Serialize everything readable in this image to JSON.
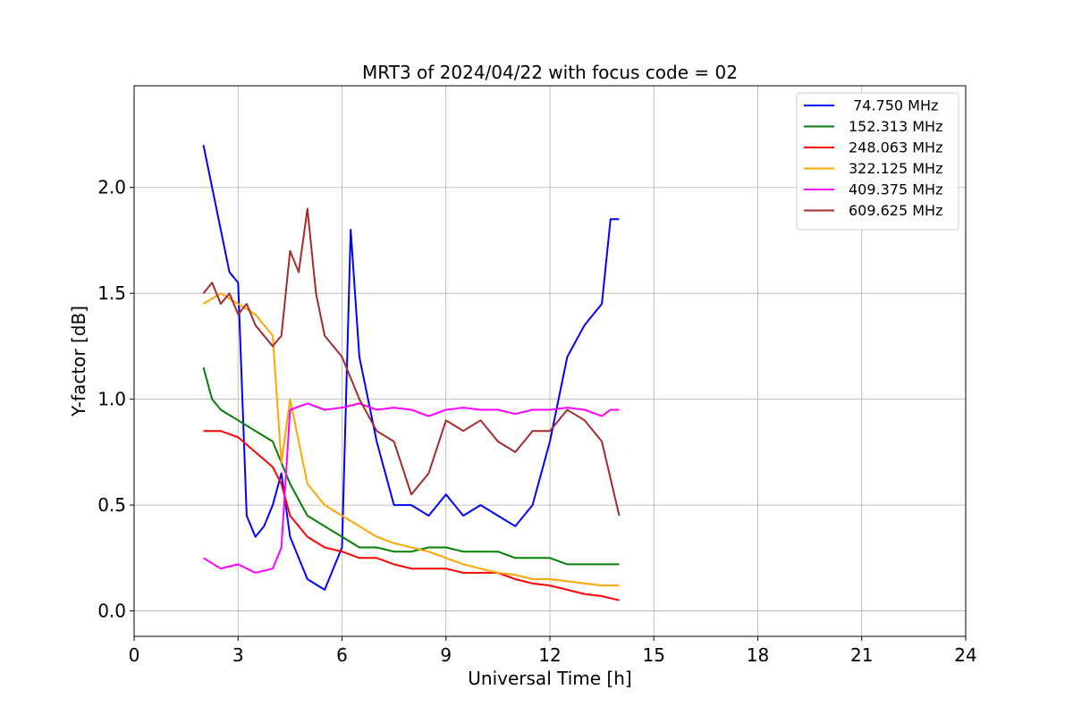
{
  "chart_data": {
    "type": "line",
    "title": "MRT3 of 2024/04/22 with focus code = 02",
    "xlabel": "Universal Time [h]",
    "ylabel": "Y-factor [dB]",
    "xlim": [
      0,
      24
    ],
    "ylim": [
      -0.12,
      2.48
    ],
    "xticks": [
      0,
      3,
      6,
      9,
      12,
      15,
      18,
      21,
      24
    ],
    "xtick_labels": [
      "0",
      "3",
      "6",
      "9",
      "12",
      "15",
      "18",
      "21",
      "24"
    ],
    "yticks": [
      0.0,
      0.5,
      1.0,
      1.5,
      2.0
    ],
    "ytick_labels": [
      "0.0",
      "0.5",
      "1.0",
      "1.5",
      "2.0"
    ],
    "grid": true,
    "legend_position": "top-right",
    "series": [
      {
        "name": " 74.750 MHz",
        "color": "#0000ff",
        "x": [
          2.0,
          2.25,
          2.5,
          2.75,
          3.0,
          3.25,
          3.5,
          3.75,
          4.0,
          4.25,
          4.5,
          5.0,
          5.5,
          6.0,
          6.25,
          6.5,
          7.0,
          7.5,
          8.0,
          8.5,
          9.0,
          9.5,
          10.0,
          10.5,
          11.0,
          11.5,
          12.0,
          12.5,
          13.0,
          13.25,
          13.5,
          13.75,
          14.0
        ],
        "y": [
          2.2,
          2.0,
          1.8,
          1.6,
          1.55,
          0.45,
          0.35,
          0.4,
          0.5,
          0.65,
          0.35,
          0.15,
          0.1,
          0.3,
          1.8,
          1.2,
          0.8,
          0.5,
          0.5,
          0.45,
          0.55,
          0.45,
          0.5,
          0.45,
          0.4,
          0.5,
          0.8,
          1.2,
          1.35,
          1.4,
          1.45,
          1.85,
          1.85
        ]
      },
      {
        "name": "152.313 MHz",
        "color": "#008000",
        "x": [
          2.0,
          2.25,
          2.5,
          3.0,
          3.5,
          4.0,
          4.5,
          5.0,
          5.5,
          6.0,
          6.5,
          7.0,
          7.5,
          8.0,
          8.5,
          9.0,
          9.5,
          10.0,
          10.5,
          11.0,
          11.5,
          12.0,
          12.5,
          13.0,
          13.5,
          14.0
        ],
        "y": [
          1.15,
          1.0,
          0.95,
          0.9,
          0.85,
          0.8,
          0.6,
          0.45,
          0.4,
          0.35,
          0.3,
          0.3,
          0.28,
          0.28,
          0.3,
          0.3,
          0.28,
          0.28,
          0.28,
          0.25,
          0.25,
          0.25,
          0.22,
          0.22,
          0.22,
          0.22
        ]
      },
      {
        "name": "248.063 MHz",
        "color": "#ff0000",
        "x": [
          2.0,
          2.5,
          3.0,
          3.5,
          4.0,
          4.25,
          4.5,
          5.0,
          5.5,
          6.0,
          6.5,
          7.0,
          7.5,
          8.0,
          8.5,
          9.0,
          9.5,
          10.0,
          10.5,
          11.0,
          11.5,
          12.0,
          12.5,
          13.0,
          13.5,
          14.0
        ],
        "y": [
          0.85,
          0.85,
          0.82,
          0.75,
          0.68,
          0.6,
          0.45,
          0.35,
          0.3,
          0.28,
          0.25,
          0.25,
          0.22,
          0.2,
          0.2,
          0.2,
          0.18,
          0.18,
          0.18,
          0.15,
          0.13,
          0.12,
          0.1,
          0.08,
          0.07,
          0.05
        ]
      },
      {
        "name": "322.125 MHz",
        "color": "#ffa500",
        "x": [
          2.0,
          2.5,
          3.0,
          3.5,
          4.0,
          4.25,
          4.5,
          5.0,
          5.5,
          6.0,
          6.5,
          7.0,
          7.5,
          8.0,
          8.5,
          9.0,
          9.5,
          10.0,
          10.5,
          11.0,
          11.5,
          12.0,
          12.5,
          13.0,
          13.5,
          14.0
        ],
        "y": [
          1.45,
          1.5,
          1.45,
          1.4,
          1.3,
          0.7,
          1.0,
          0.6,
          0.5,
          0.45,
          0.4,
          0.35,
          0.32,
          0.3,
          0.28,
          0.25,
          0.22,
          0.2,
          0.18,
          0.17,
          0.15,
          0.15,
          0.14,
          0.13,
          0.12,
          0.12
        ]
      },
      {
        "name": "409.375 MHz",
        "color": "#ff00ff",
        "x": [
          2.0,
          2.5,
          3.0,
          3.5,
          4.0,
          4.25,
          4.5,
          5.0,
          5.5,
          6.0,
          6.5,
          7.0,
          7.5,
          8.0,
          8.5,
          9.0,
          9.5,
          10.0,
          10.5,
          11.0,
          11.5,
          12.0,
          12.5,
          13.0,
          13.5,
          13.75,
          14.0
        ],
        "y": [
          0.25,
          0.2,
          0.22,
          0.18,
          0.2,
          0.3,
          0.95,
          0.98,
          0.95,
          0.96,
          0.98,
          0.95,
          0.96,
          0.95,
          0.92,
          0.95,
          0.96,
          0.95,
          0.95,
          0.93,
          0.95,
          0.95,
          0.96,
          0.95,
          0.92,
          0.95,
          0.95
        ]
      },
      {
        "name": "609.625 MHz",
        "color": "#a52a2a",
        "x": [
          2.0,
          2.25,
          2.5,
          2.75,
          3.0,
          3.25,
          3.5,
          3.75,
          4.0,
          4.25,
          4.5,
          4.75,
          5.0,
          5.25,
          5.5,
          5.75,
          6.0,
          6.5,
          7.0,
          7.5,
          8.0,
          8.5,
          9.0,
          9.5,
          10.0,
          10.5,
          11.0,
          11.5,
          12.0,
          12.5,
          13.0,
          13.5,
          14.0
        ],
        "y": [
          1.5,
          1.55,
          1.45,
          1.5,
          1.4,
          1.45,
          1.35,
          1.3,
          1.25,
          1.3,
          1.7,
          1.6,
          1.9,
          1.5,
          1.3,
          1.25,
          1.2,
          1.0,
          0.85,
          0.8,
          0.55,
          0.65,
          0.9,
          0.85,
          0.9,
          0.8,
          0.75,
          0.85,
          0.85,
          0.95,
          0.9,
          0.8,
          0.45
        ]
      }
    ]
  }
}
